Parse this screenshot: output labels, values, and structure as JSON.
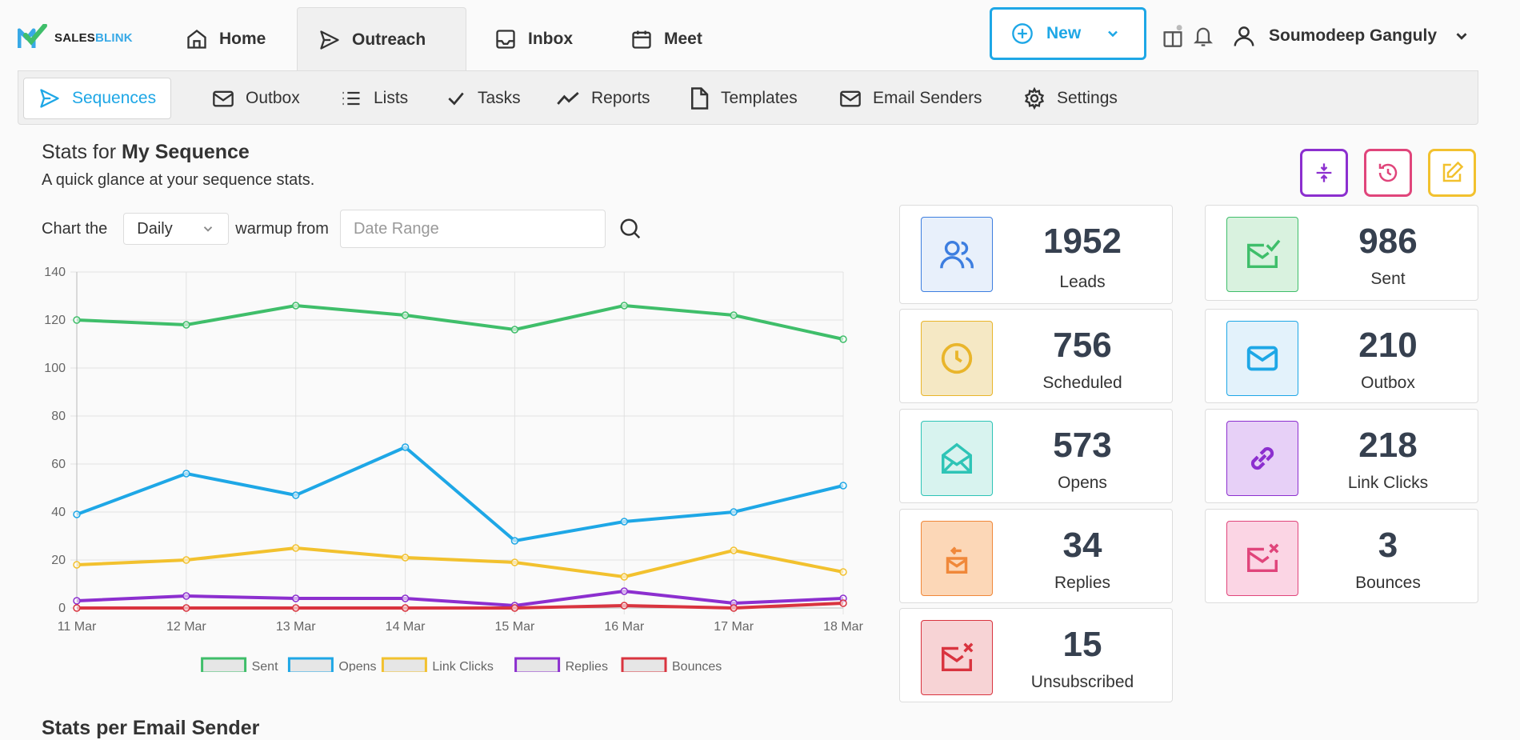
{
  "brand": {
    "name_part1": "SALES",
    "name_part2": "BLINK"
  },
  "topnav": {
    "tabs": [
      {
        "label": "Home",
        "icon": "home-icon"
      },
      {
        "label": "Outreach",
        "icon": "send-icon",
        "active": true
      },
      {
        "label": "Inbox",
        "icon": "inbox-icon"
      },
      {
        "label": "Meet",
        "icon": "calendar-icon"
      }
    ],
    "new_label": "New",
    "user_name": "Soumodeep Ganguly"
  },
  "subnav": {
    "items": [
      {
        "label": "Sequences",
        "icon": "send-icon",
        "active": true
      },
      {
        "label": "Outbox",
        "icon": "mail-icon"
      },
      {
        "label": "Lists",
        "icon": "list-icon"
      },
      {
        "label": "Tasks",
        "icon": "check-icon"
      },
      {
        "label": "Reports",
        "icon": "trend-icon"
      },
      {
        "label": "Templates",
        "icon": "file-icon"
      },
      {
        "label": "Email Senders",
        "icon": "mail-icon"
      },
      {
        "label": "Settings",
        "icon": "gear-icon"
      }
    ]
  },
  "stats": {
    "title_prefix": "Stats for",
    "sequence_name": "My Sequence",
    "subtitle": "A quick glance at your sequence stats.",
    "chart_the": "Chart the",
    "interval": "Daily",
    "warmup_from": "warmup from",
    "date_placeholder": "Date Range"
  },
  "colors": {
    "sent": "#3fbe6a",
    "opens": "#1ea7e6",
    "link_clicks": "#f2c12e",
    "replies": "#8c2fcf",
    "bounces": "#d9343f",
    "purple": "#8c2fcf",
    "pink": "#e0457b",
    "yellow": "#f2c12e"
  },
  "cards": [
    {
      "value": "1952",
      "label": "Leads",
      "icon": "users-icon",
      "color": "#3d7ee0",
      "bg": "#e8f0fb"
    },
    {
      "value": "986",
      "label": "Sent",
      "icon": "mail-check-icon",
      "color": "#3fbe6a",
      "bg": "#d9f2df"
    },
    {
      "value": "756",
      "label": "Scheduled",
      "icon": "clock-icon",
      "color": "#e9b52b",
      "bg": "#f5e8c4"
    },
    {
      "value": "210",
      "label": "Outbox",
      "icon": "mail-icon",
      "color": "#1ea7e6",
      "bg": "#e3f2fb"
    },
    {
      "value": "573",
      "label": "Opens",
      "icon": "mail-open-icon",
      "color": "#2ec4b6",
      "bg": "#d8f3ef"
    },
    {
      "value": "218",
      "label": "Link Clicks",
      "icon": "link-icon",
      "color": "#8c2fcf",
      "bg": "#e7d0f7"
    },
    {
      "value": "34",
      "label": "Replies",
      "icon": "reply-icon",
      "color": "#f0883a",
      "bg": "#fcd7b7"
    },
    {
      "value": "3",
      "label": "Bounces",
      "icon": "mail-x-icon",
      "color": "#e0457b",
      "bg": "#fbd5e4"
    },
    {
      "value": "15",
      "label": "Unsubscribed",
      "icon": "mail-x-icon",
      "color": "#d9343f",
      "bg": "#f7d3d5"
    }
  ],
  "section2_title": "Stats per Email Sender",
  "chart_data": {
    "type": "line",
    "x": [
      "11 Mar",
      "12 Mar",
      "13 Mar",
      "14 Mar",
      "15 Mar",
      "16 Mar",
      "17 Mar",
      "18 Mar"
    ],
    "ylim": [
      0,
      140
    ],
    "yticks": [
      0,
      20,
      40,
      60,
      80,
      100,
      120,
      140
    ],
    "grid": true,
    "legend": "bottom",
    "series": [
      {
        "name": "Sent",
        "color": "#3fbe6a",
        "values": [
          120,
          118,
          126,
          122,
          116,
          126,
          122,
          112
        ]
      },
      {
        "name": "Opens",
        "color": "#1ea7e6",
        "values": [
          39,
          56,
          47,
          67,
          28,
          36,
          40,
          51
        ]
      },
      {
        "name": "Link Clicks",
        "color": "#f2c12e",
        "values": [
          18,
          20,
          25,
          21,
          19,
          13,
          24,
          15
        ]
      },
      {
        "name": "Replies",
        "color": "#8c2fcf",
        "values": [
          3,
          5,
          4,
          4,
          1,
          7,
          2,
          4
        ]
      },
      {
        "name": "Bounces",
        "color": "#d9343f",
        "values": [
          0,
          0,
          0,
          0,
          0,
          1,
          0,
          2
        ]
      }
    ]
  }
}
